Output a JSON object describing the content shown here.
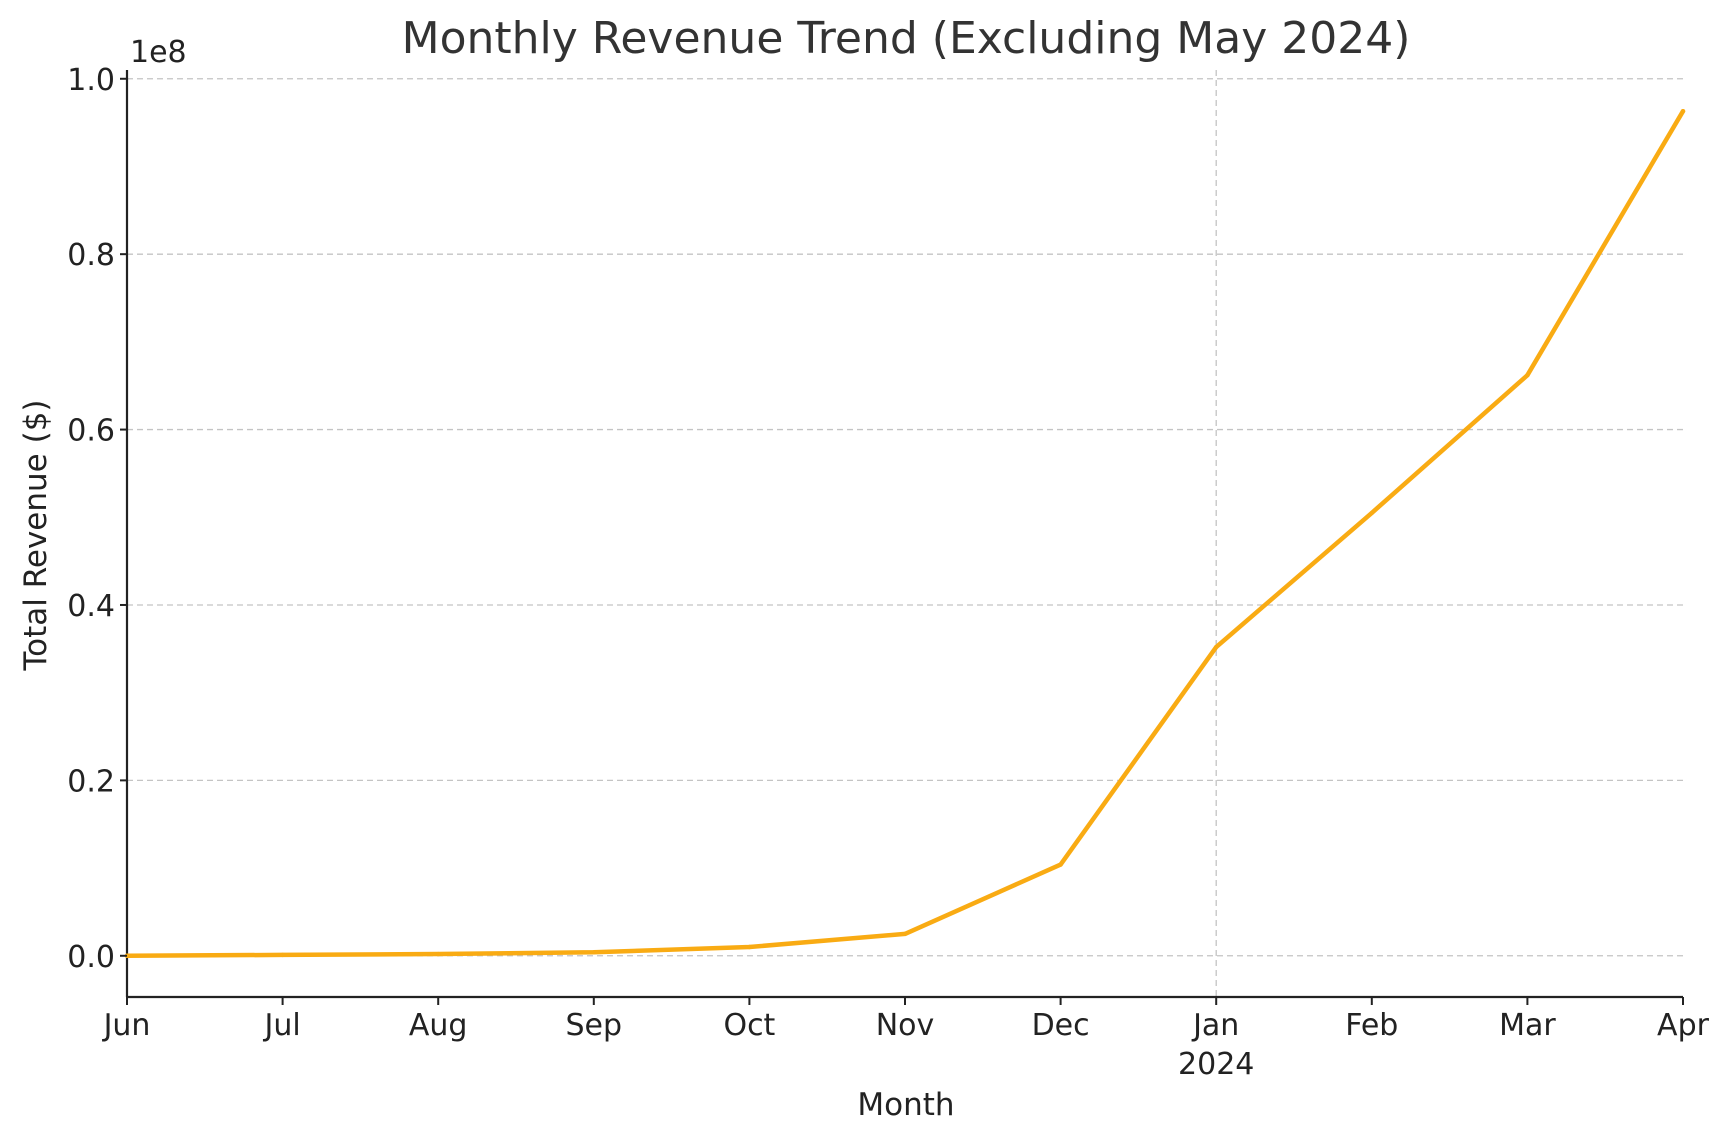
{
  "chart_data": {
    "type": "line",
    "title": "Monthly Revenue Trend (Excluding May 2024)",
    "xlabel": "Month",
    "ylabel": "Total Revenue ($)",
    "y_offset_label": "1e8",
    "ylim": [
      -0.047,
      1.01
    ],
    "y_ticks": [
      {
        "value": 0.0,
        "label": "0.0"
      },
      {
        "value": 0.2,
        "label": "0.2"
      },
      {
        "value": 0.4,
        "label": "0.4"
      },
      {
        "value": 0.6,
        "label": "0.6"
      },
      {
        "value": 0.8,
        "label": "0.8"
      },
      {
        "value": 1.0,
        "label": "1.0"
      }
    ],
    "x_ticks": [
      {
        "label": "Jun",
        "sublabel": ""
      },
      {
        "label": "Jul",
        "sublabel": ""
      },
      {
        "label": "Aug",
        "sublabel": ""
      },
      {
        "label": "Sep",
        "sublabel": ""
      },
      {
        "label": "Oct",
        "sublabel": ""
      },
      {
        "label": "Nov",
        "sublabel": ""
      },
      {
        "label": "Dec",
        "sublabel": ""
      },
      {
        "label": "Jan",
        "sublabel": "2024"
      },
      {
        "label": "Feb",
        "sublabel": ""
      },
      {
        "label": "Mar",
        "sublabel": ""
      },
      {
        "label": "Apr",
        "sublabel": ""
      }
    ],
    "highlight_gridline_index": 7,
    "grid": true,
    "series": [
      {
        "name": "Total Revenue",
        "color": "#f9ab13",
        "values": [
          0.0,
          0.001,
          0.002,
          0.004,
          0.01,
          0.025,
          0.104,
          0.352,
          0.505,
          0.662,
          0.963
        ]
      }
    ]
  }
}
